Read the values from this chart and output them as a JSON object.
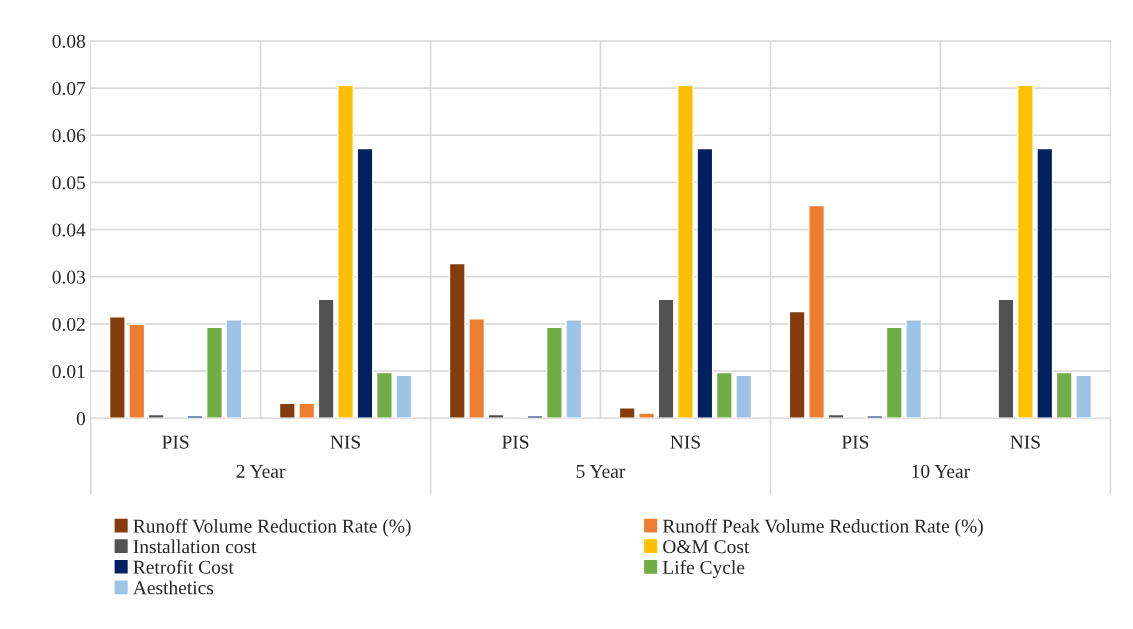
{
  "chart_data": {
    "type": "bar",
    "categories": [
      "PIS",
      "NIS",
      "PIS",
      "NIS",
      "PIS",
      "NIS"
    ],
    "annotations": [
      "2 Year",
      "5 Year",
      "10 Year"
    ],
    "series": [
      {
        "name": "Runoff Volume Reduction Rate (%)",
        "color": "#843c0c",
        "values": [
          0.0215,
          0.0032,
          0.0328,
          0.0022,
          0.0226,
          null
        ]
      },
      {
        "name": "Runoff Peak Volume Reduction Rate (%)",
        "color": "#ed7d31",
        "values": [
          0.0199,
          0.0032,
          0.0211,
          0.0011,
          0.0451,
          null
        ]
      },
      {
        "name": "Installation cost",
        "color": "#525252",
        "values": [
          0.0008,
          0.0252,
          0.0008,
          0.0252,
          0.0008,
          0.0252
        ]
      },
      {
        "name": "O&M Cost",
        "color": "#ffc000",
        "values": [
          null,
          0.0706,
          null,
          0.0706,
          null,
          0.0706
        ]
      },
      {
        "name": "Retrofit Cost",
        "color": "#002060",
        "values": [
          0.0005,
          0.0572,
          0.0005,
          0.0572,
          0.0005,
          0.0572
        ]
      },
      {
        "name": "Life Cycle",
        "color": "#70ad47",
        "values": [
          0.0193,
          0.0097,
          0.0193,
          0.0097,
          0.0193,
          0.0097
        ]
      },
      {
        "name": "Aesthetics",
        "color": "#9dc3e6",
        "values": [
          0.0209,
          0.0091,
          0.0209,
          0.0091,
          0.0209,
          0.0091
        ]
      }
    ],
    "ylim": [
      0,
      0.08
    ],
    "yticks": [
      {
        "value": 0,
        "label": "0"
      },
      0.01,
      0.02,
      0.03,
      0.04,
      0.05,
      0.06,
      0.07,
      0.08
    ],
    "grid": true,
    "legend": "bottom"
  }
}
